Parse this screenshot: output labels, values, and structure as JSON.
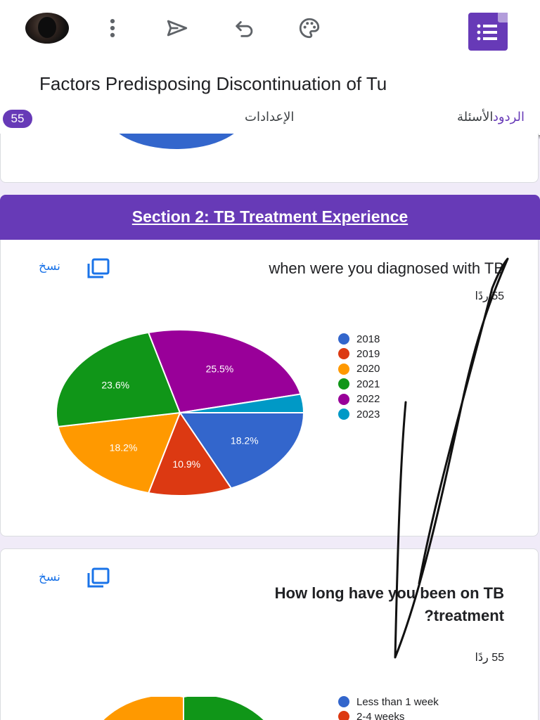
{
  "header": {
    "title": "Factors Predisposing Discontinuation of Tu",
    "icons": [
      "more-vert-icon",
      "send-icon",
      "undo-icon",
      "palette-icon",
      "google-forms-icon"
    ]
  },
  "tabs": {
    "questions": "الأسئلة",
    "responses": "الردود",
    "responses_count": "55",
    "settings": "الإعدادات"
  },
  "section": {
    "title": "Section 2: TB Treatment Experience"
  },
  "question1": {
    "copy_label": "نسخ",
    "title": "when were you diagnosed with TB",
    "response_count": "55 ردًا"
  },
  "question2": {
    "copy_label": "نسخ",
    "title_line1": "How long have you been on TB",
    "title_line2": "?treatment",
    "response_count": "55 ردًا"
  },
  "chart_data": [
    {
      "type": "pie",
      "categories": [
        "2018",
        "2019",
        "2020",
        "2021",
        "2022",
        "2023"
      ],
      "values": [
        18.2,
        10.9,
        18.2,
        23.6,
        25.5,
        3.6
      ],
      "data_labels": [
        "18.2%",
        "10.9%",
        "18.2%",
        "23.6%",
        "25.5%",
        ""
      ],
      "colors": [
        "#3366cc",
        "#dc3912",
        "#ff9900",
        "#109618",
        "#990099",
        "#0099c6"
      ],
      "legend": "right"
    },
    {
      "type": "pie",
      "categories": [
        "Less than 1 week",
        "2-4 weeks"
      ],
      "colors": [
        "#3366cc",
        "#dc3912"
      ],
      "legend": "right"
    }
  ]
}
